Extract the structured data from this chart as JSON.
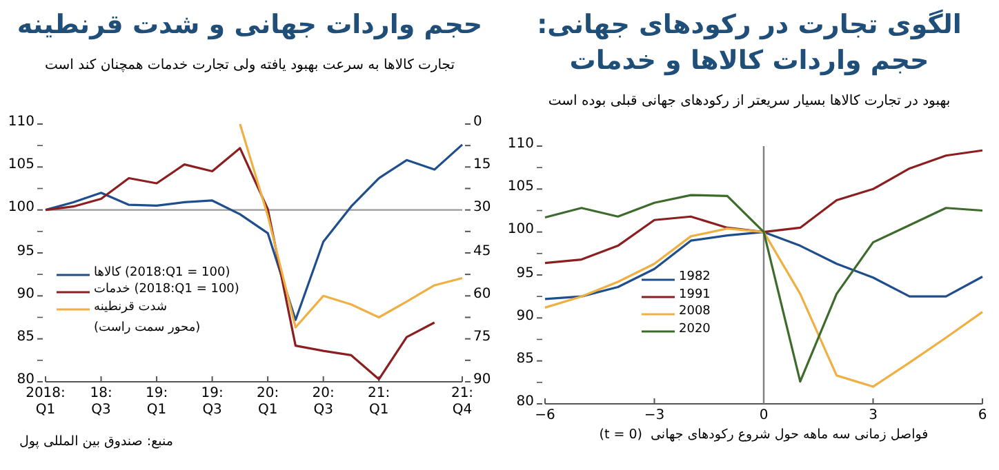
{
  "chart_data": [
    {
      "type": "line",
      "title": "الگوی تجارت در رکودهای جهانی:\nحجم واردات کالاها و خدمات",
      "subtitle": "بهبود در تجارت کالاها بسیار سریعتر از رکودهای جهانی قبلی بوده است",
      "xlabel": "(t = 0)  فواصل زمانی سه ماهه حول شروع رکودهای جهانی",
      "x": [
        -6,
        -5,
        -4,
        -3,
        -2,
        -1,
        0,
        1,
        2,
        3,
        4,
        5,
        6
      ],
      "series": [
        {
          "name": "1982",
          "color": "#1f4e8c",
          "values": [
            92.2,
            92.5,
            93.6,
            95.7,
            99.0,
            99.6,
            100,
            98.4,
            96.3,
            94.7,
            92.5,
            92.5,
            94.8
          ]
        },
        {
          "name": "1991",
          "color": "#8b1f1f",
          "values": [
            96.4,
            96.8,
            98.4,
            101.4,
            101.8,
            100.5,
            100,
            100.5,
            103.7,
            105.0,
            107.4,
            108.9,
            109.5
          ]
        },
        {
          "name": "2008",
          "color": "#eeb043",
          "values": [
            91.2,
            92.5,
            94.2,
            96.3,
            99.5,
            100.4,
            100,
            92.8,
            83.3,
            82.0,
            84.8,
            87.7,
            90.7
          ]
        },
        {
          "name": "2020",
          "color": "#3d6b2c",
          "values": [
            101.7,
            102.8,
            101.8,
            103.4,
            104.3,
            104.2,
            100,
            82.6,
            92.8,
            98.8,
            100.8,
            102.8,
            102.5
          ]
        }
      ],
      "xlim": [
        -6,
        6
      ],
      "xticks": [
        {
          "value": -6,
          "label": "−6"
        },
        {
          "value": -3,
          "label": "−3"
        },
        0,
        3,
        6
      ],
      "ylim": [
        80,
        110
      ],
      "yticks": [
        80,
        {
          "value": 82.5,
          "label": null
        },
        85,
        {
          "value": 87.5,
          "label": null
        },
        90,
        {
          "value": 92.5,
          "label": null
        },
        95,
        {
          "value": 97.5,
          "label": null
        },
        100,
        {
          "value": 102.5,
          "label": null
        },
        105,
        {
          "value": 107.5,
          "label": null
        },
        110
      ],
      "ref_lines": [
        {
          "axis": "x",
          "value": 0,
          "color": "#808080"
        }
      ],
      "legend": "bottom left"
    },
    {
      "type": "line",
      "title": "حجم واردات جهانی و شدت قرنطینه",
      "subtitle": "تجارت کالاها به سرعت بهبود یافته ولی تجارت خدمات همچنان کند است",
      "categories": [
        "2018:\nQ1",
        null,
        "18:\nQ3",
        null,
        "19:\nQ1",
        null,
        "19:\nQ3",
        null,
        "20:\nQ1",
        null,
        "20:\nQ3",
        null,
        "21:\nQ1",
        null,
        null,
        "21:\nQ4"
      ],
      "series": [
        {
          "name": "کالاها (2018:Q1 = 100)",
          "color": "#1f4e8c",
          "values": [
            100,
            100.9,
            102.0,
            100.6,
            100.5,
            100.9,
            101.1,
            99.5,
            97.3,
            87.2,
            96.3,
            100.4,
            103.7,
            105.8,
            104.7,
            107.6
          ]
        },
        {
          "name": "خدمات (2018:Q1 = 100)",
          "color": "#8b1f1f",
          "values": [
            100,
            100.4,
            101.3,
            103.7,
            103.1,
            105.3,
            104.5,
            107.2,
            100.1,
            84.2,
            83.6,
            83.1,
            80.3,
            85.2,
            86.9,
            null
          ]
        },
        {
          "name": "شدت قرنطینه",
          "color": "#eeb043",
          "axis": "y2",
          "values": [
            null,
            null,
            null,
            null,
            null,
            null,
            null,
            0,
            32,
            71,
            60,
            63,
            67.5,
            62,
            56.3,
            53.8
          ]
        }
      ],
      "ylim": [
        80,
        110
      ],
      "yticks": [
        80,
        {
          "value": 82.5,
          "label": null
        },
        85,
        {
          "value": 87.5,
          "label": null
        },
        90,
        {
          "value": 92.5,
          "label": null
        },
        95,
        {
          "value": 97.5,
          "label": null
        },
        100,
        {
          "value": 102.5,
          "label": null
        },
        105,
        {
          "value": 107.5,
          "label": null
        },
        110
      ],
      "y2lim": [
        90,
        0
      ],
      "y2ticks": [
        0,
        {
          "value": 7.5,
          "label": null
        },
        15,
        {
          "value": 22.5,
          "label": null
        },
        30,
        {
          "value": 37.5,
          "label": null
        },
        45,
        {
          "value": 52.5,
          "label": null
        },
        60,
        {
          "value": 67.5,
          "label": null
        },
        75,
        {
          "value": 82.5,
          "label": null
        },
        90
      ],
      "ref_lines": [
        {
          "axis": "y",
          "value": 100,
          "color": "#999999"
        }
      ],
      "legend": "bottom left",
      "annotations": [
        "(محور سمت راست)",
        "منبع: صندوق بین المللی پول"
      ]
    }
  ]
}
